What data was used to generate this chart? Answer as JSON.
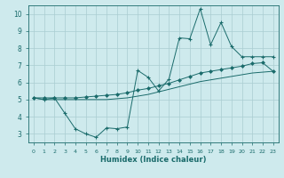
{
  "xlabel": "Humidex (Indice chaleur)",
  "bg_color": "#ceeaed",
  "grid_color": "#aacdd1",
  "line_color": "#1a6b6b",
  "xlim": [
    -0.5,
    23.5
  ],
  "ylim": [
    2.5,
    10.5
  ],
  "xticks": [
    0,
    1,
    2,
    3,
    4,
    5,
    6,
    7,
    8,
    9,
    10,
    11,
    12,
    13,
    14,
    15,
    16,
    17,
    18,
    19,
    20,
    21,
    22,
    23
  ],
  "yticks": [
    3,
    4,
    5,
    6,
    7,
    8,
    9,
    10
  ],
  "line1_x": [
    0,
    1,
    2,
    3,
    4,
    5,
    6,
    7,
    8,
    9,
    10,
    11,
    12,
    13,
    14,
    15,
    16,
    17,
    18,
    19,
    20,
    21,
    22,
    23
  ],
  "line1_y": [
    5.1,
    5.0,
    5.1,
    4.2,
    3.3,
    3.0,
    2.8,
    3.35,
    3.3,
    3.4,
    6.7,
    6.3,
    5.5,
    6.2,
    8.6,
    8.55,
    10.3,
    8.2,
    9.5,
    8.1,
    7.5,
    7.5,
    7.5,
    7.5
  ],
  "line2_x": [
    0,
    1,
    2,
    3,
    4,
    5,
    6,
    7,
    8,
    9,
    10,
    11,
    12,
    13,
    14,
    15,
    16,
    17,
    18,
    19,
    20,
    21,
    22,
    23
  ],
  "line2_y": [
    5.1,
    5.1,
    5.1,
    5.1,
    5.1,
    5.15,
    5.2,
    5.25,
    5.3,
    5.4,
    5.55,
    5.65,
    5.8,
    5.95,
    6.15,
    6.35,
    6.55,
    6.65,
    6.75,
    6.85,
    6.95,
    7.1,
    7.15,
    6.65
  ],
  "line3_x": [
    0,
    1,
    2,
    3,
    4,
    5,
    6,
    7,
    8,
    9,
    10,
    11,
    12,
    13,
    14,
    15,
    16,
    17,
    18,
    19,
    20,
    21,
    22,
    23
  ],
  "line3_y": [
    5.1,
    5.0,
    5.0,
    5.0,
    5.0,
    5.0,
    5.0,
    5.0,
    5.05,
    5.1,
    5.2,
    5.3,
    5.45,
    5.6,
    5.75,
    5.9,
    6.05,
    6.15,
    6.25,
    6.35,
    6.45,
    6.55,
    6.6,
    6.65
  ]
}
